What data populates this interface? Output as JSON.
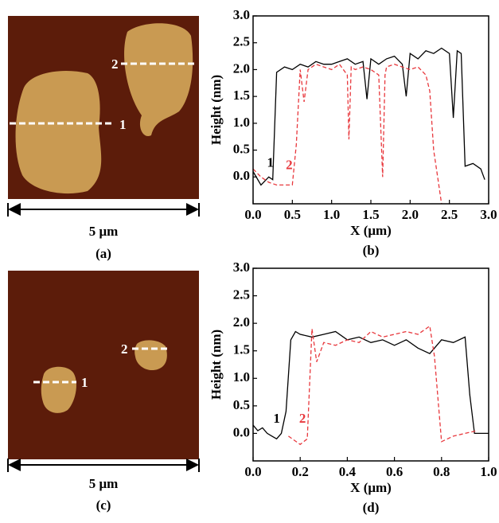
{
  "chart_data": [
    {
      "type": "line",
      "panel": "(b)",
      "xlabel": "X (μm)",
      "ylabel": "Height (nm)",
      "xlim": [
        0,
        3
      ],
      "xticks": [
        {
          "value": 0,
          "label": "0.0"
        },
        {
          "value": 0.5,
          "label": "0.5"
        },
        {
          "value": 1,
          "label": "1.0"
        },
        {
          "value": 1.5,
          "label": "1.5"
        },
        {
          "value": 2,
          "label": "2.0"
        },
        {
          "value": 2.5,
          "label": "2.5"
        },
        {
          "value": 3,
          "label": "3.0"
        }
      ],
      "ylim": [
        -0.5,
        3
      ],
      "yticks": [
        {
          "value": 0,
          "label": "0.0"
        },
        {
          "value": 0.5,
          "label": "0.5"
        },
        {
          "value": 1,
          "label": "1.0"
        },
        {
          "value": 1.5,
          "label": "1.5"
        },
        {
          "value": 2,
          "label": "2.0"
        },
        {
          "value": 2.5,
          "label": "2.5"
        },
        {
          "value": 3,
          "label": "3.0"
        }
      ],
      "series": [
        {
          "name": "1",
          "color": "#000000",
          "style": "solid",
          "x": [
            0,
            0.1,
            0.2,
            0.25,
            0.3,
            0.4,
            0.5,
            0.6,
            0.7,
            0.8,
            0.9,
            1.0,
            1.1,
            1.2,
            1.3,
            1.4,
            1.45,
            1.5,
            1.6,
            1.7,
            1.8,
            1.9,
            1.95,
            2.0,
            2.1,
            2.2,
            2.3,
            2.4,
            2.5,
            2.55,
            2.6,
            2.65,
            2.7,
            2.8,
            2.9,
            2.95
          ],
          "values": [
            0.1,
            -0.15,
            0,
            -0.05,
            1.95,
            2.05,
            2.0,
            2.1,
            2.05,
            2.15,
            2.1,
            2.1,
            2.15,
            2.2,
            2.1,
            2.15,
            1.45,
            2.2,
            2.1,
            2.2,
            2.25,
            2.1,
            1.5,
            2.3,
            2.2,
            2.35,
            2.3,
            2.4,
            2.3,
            1.1,
            2.35,
            2.3,
            0.2,
            0.25,
            0.15,
            -0.05
          ]
        },
        {
          "name": "2",
          "color": "#e8383d",
          "style": "dashed",
          "x": [
            0,
            0.1,
            0.2,
            0.3,
            0.4,
            0.5,
            0.55,
            0.6,
            0.65,
            0.7,
            0.8,
            0.9,
            1.0,
            1.1,
            1.2,
            1.22,
            1.25,
            1.3,
            1.4,
            1.5,
            1.6,
            1.65,
            1.68,
            1.7,
            1.8,
            1.9,
            2.0,
            2.1,
            2.2,
            2.25,
            2.3,
            2.35,
            2.4
          ],
          "values": [
            0.15,
            0.0,
            -0.1,
            -0.15,
            -0.15,
            -0.15,
            0.6,
            2.0,
            1.4,
            2.0,
            2.1,
            2.05,
            2.0,
            2.1,
            1.9,
            0.7,
            2.05,
            2.0,
            2.05,
            2.0,
            1.9,
            0.0,
            1.9,
            2.05,
            2.1,
            2.05,
            2.0,
            2.05,
            1.9,
            1.6,
            0.5,
            0.0,
            -0.5
          ]
        }
      ]
    },
    {
      "type": "line",
      "panel": "(d)",
      "xlabel": "X (μm)",
      "ylabel": "Height (nm)",
      "xlim": [
        0,
        1
      ],
      "xticks": [
        {
          "value": 0,
          "label": "0.0"
        },
        {
          "value": 0.2,
          "label": "0.2"
        },
        {
          "value": 0.4,
          "label": "0.4"
        },
        {
          "value": 0.6,
          "label": "0.6"
        },
        {
          "value": 0.8,
          "label": "0.8"
        },
        {
          "value": 1,
          "label": "1.0"
        }
      ],
      "ylim": [
        -0.5,
        3
      ],
      "yticks": [
        {
          "value": 0,
          "label": "0.0"
        },
        {
          "value": 0.5,
          "label": "0.5"
        },
        {
          "value": 1,
          "label": "1.0"
        },
        {
          "value": 1.5,
          "label": "1.5"
        },
        {
          "value": 2,
          "label": "2.0"
        },
        {
          "value": 2.5,
          "label": "2.5"
        },
        {
          "value": 3,
          "label": "3.0"
        }
      ],
      "series": [
        {
          "name": "1",
          "color": "#000000",
          "style": "solid",
          "x": [
            0,
            0.02,
            0.04,
            0.06,
            0.08,
            0.1,
            0.12,
            0.14,
            0.16,
            0.18,
            0.2,
            0.25,
            0.3,
            0.35,
            0.4,
            0.45,
            0.5,
            0.55,
            0.6,
            0.65,
            0.7,
            0.75,
            0.8,
            0.85,
            0.9,
            0.92,
            0.94,
            0.97,
            1.0
          ],
          "values": [
            0.15,
            0.05,
            0.1,
            0.0,
            -0.05,
            -0.1,
            0.0,
            0.4,
            1.7,
            1.85,
            1.8,
            1.75,
            1.8,
            1.85,
            1.7,
            1.75,
            1.65,
            1.7,
            1.6,
            1.7,
            1.55,
            1.45,
            1.7,
            1.65,
            1.75,
            0.7,
            0.0,
            0.0,
            0.0
          ]
        },
        {
          "name": "2",
          "color": "#e8383d",
          "style": "dashed",
          "x": [
            0.15,
            0.2,
            0.23,
            0.25,
            0.27,
            0.3,
            0.35,
            0.4,
            0.45,
            0.5,
            0.55,
            0.6,
            0.65,
            0.7,
            0.75,
            0.77,
            0.8,
            0.85,
            0.9,
            0.95
          ],
          "values": [
            -0.05,
            -0.2,
            -0.1,
            1.9,
            1.3,
            1.65,
            1.6,
            1.7,
            1.65,
            1.85,
            1.75,
            1.8,
            1.85,
            1.8,
            1.95,
            1.4,
            -0.15,
            -0.05,
            0.0,
            0.05
          ]
        }
      ]
    }
  ],
  "images": [
    {
      "panel": "(a)",
      "scale": "5 μm",
      "lines": [
        "1",
        "2"
      ]
    },
    {
      "panel": "(c)",
      "scale": "5 μm",
      "lines": [
        "1",
        "2"
      ]
    }
  ]
}
